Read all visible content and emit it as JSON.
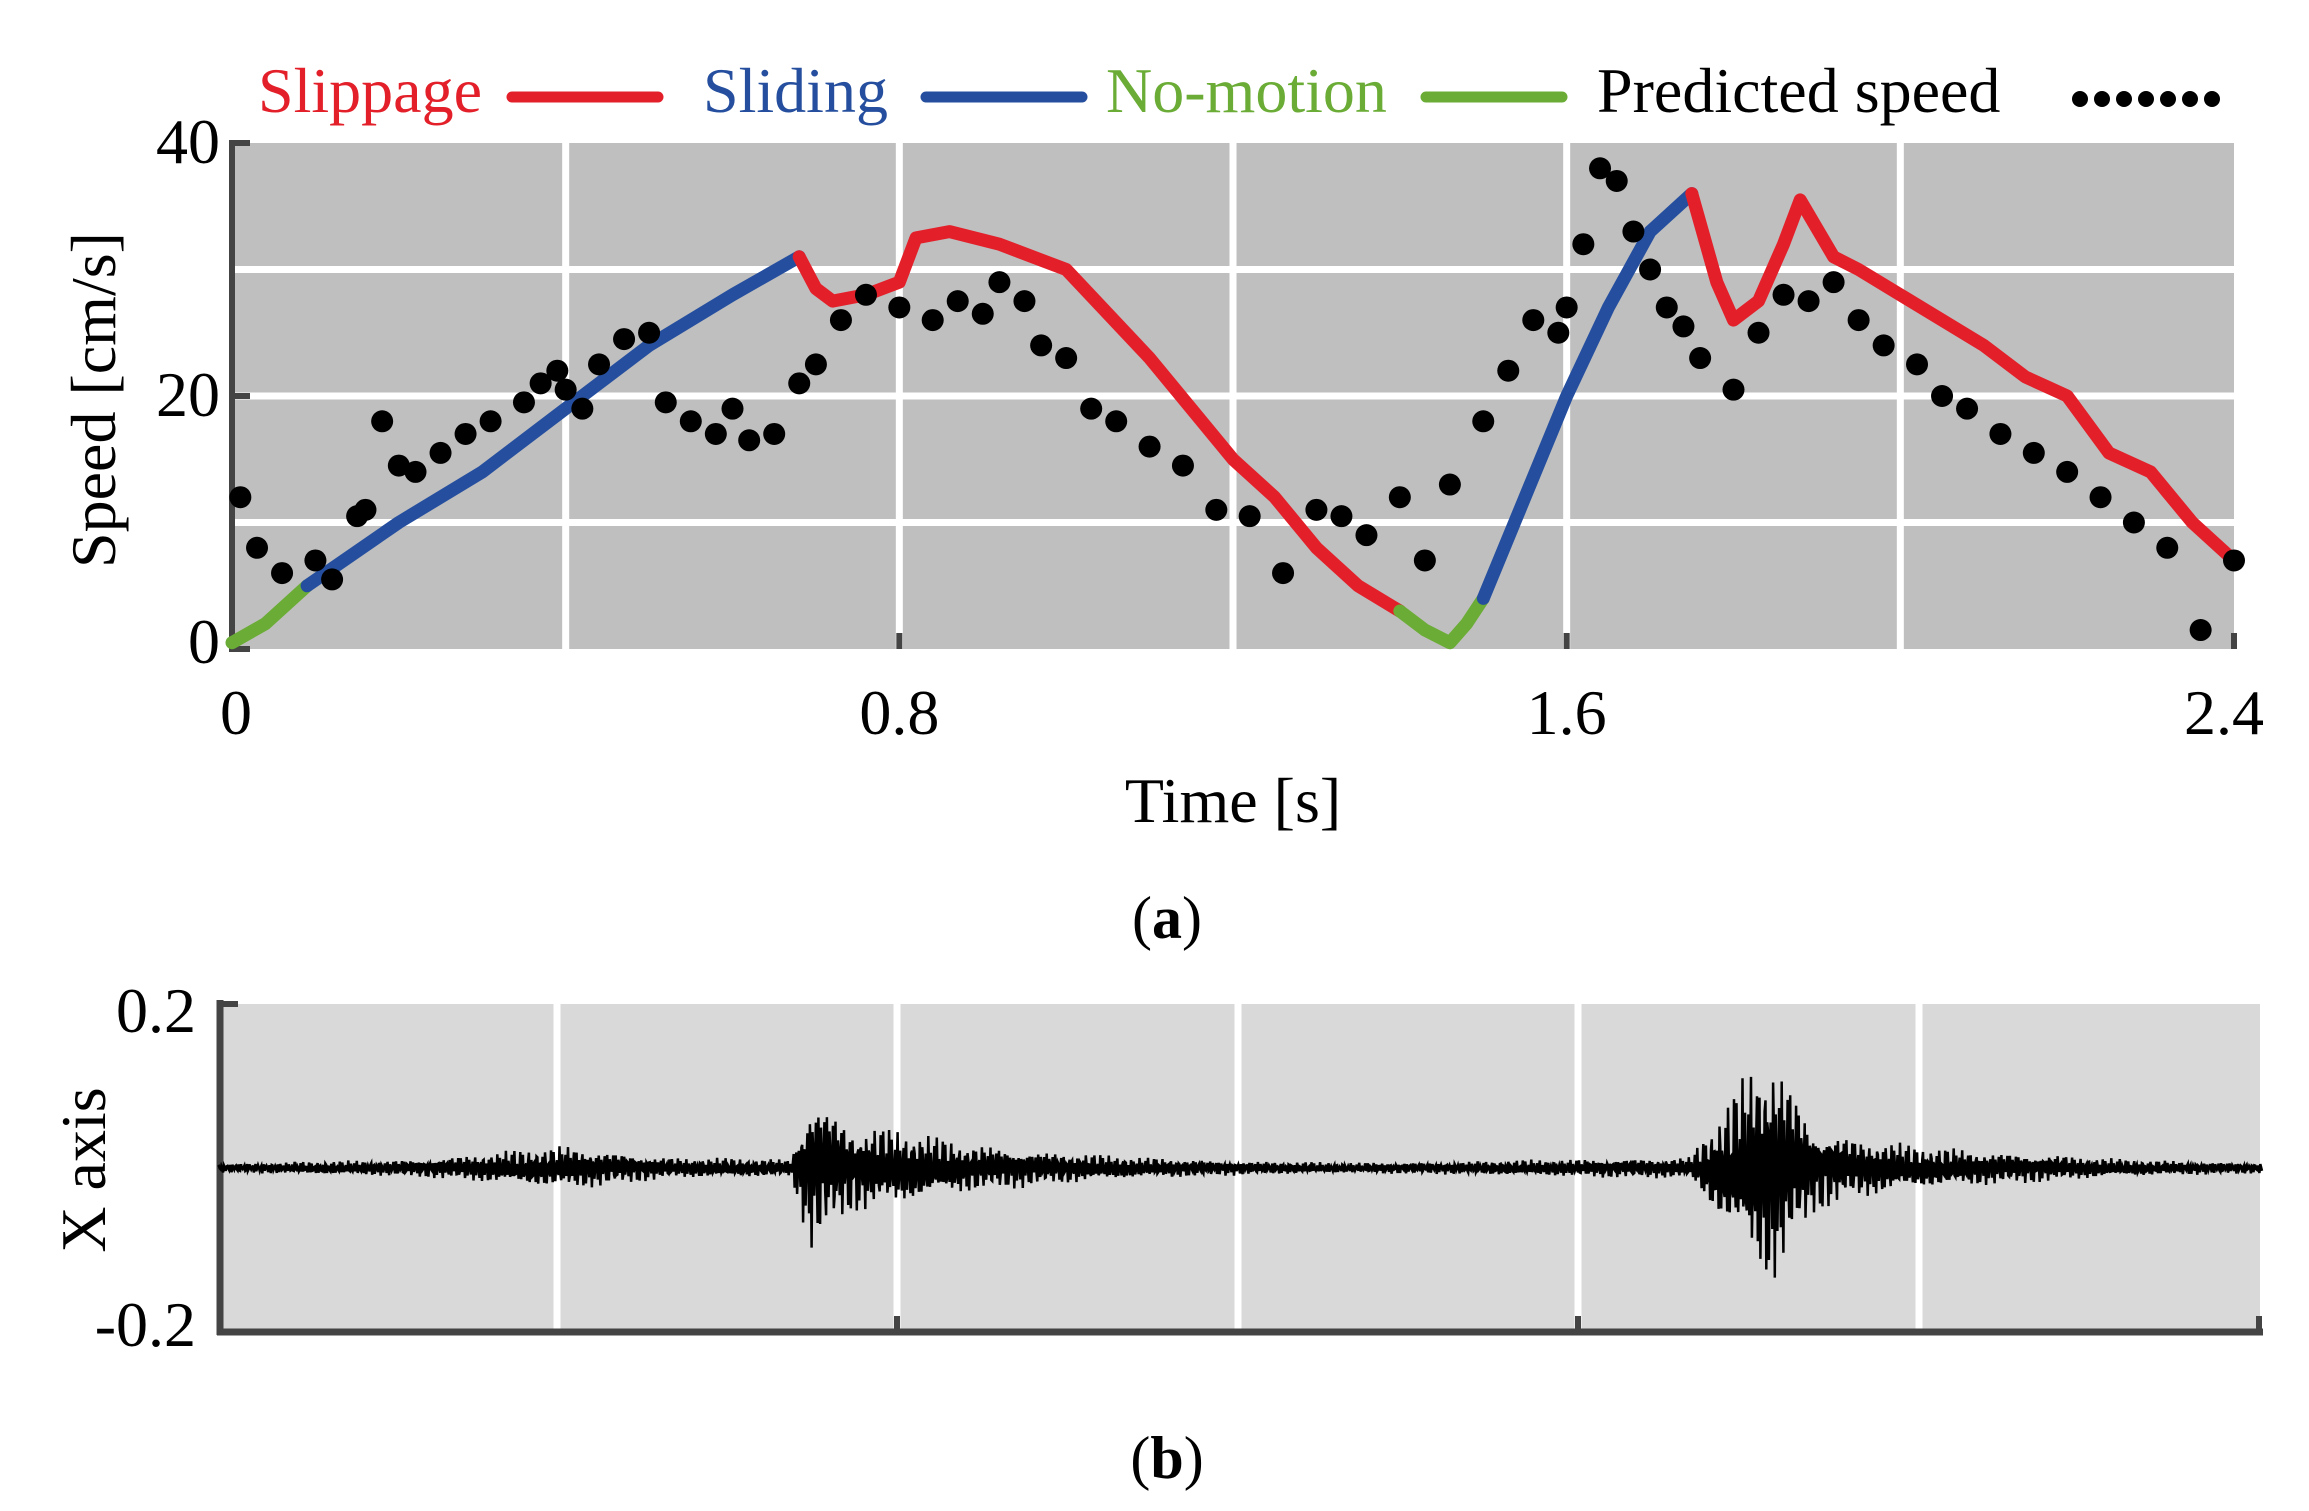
{
  "figure_a": {
    "caption_open": "(",
    "caption_letter": "a",
    "caption_close": ")"
  },
  "figure_b": {
    "caption_open": "(",
    "caption_letter": "b",
    "caption_close": ")"
  },
  "colors": {
    "slippage": "#e3202a",
    "sliding": "#254f9e",
    "no_motion": "#6aac35",
    "predicted": "#000000",
    "panel_a_bg": "#bfbfbf",
    "panel_b_bg": "#d9d9d9",
    "grid": "#ffffff",
    "axis": "#444444"
  },
  "chart_data": [
    {
      "type": "line",
      "title": "",
      "xlabel": "Time [s]",
      "ylabel": "Speed [cm/s]",
      "xlim": [
        0,
        2.4
      ],
      "ylim": [
        0,
        40
      ],
      "xticks": [
        0,
        0.8,
        1.6,
        2.4
      ],
      "xtick_labels": [
        "0",
        "0.8",
        "1.6",
        "2.4"
      ],
      "yticks": [
        0,
        20,
        40
      ],
      "ytick_labels": [
        "0",
        "20",
        "40"
      ],
      "grid": true,
      "legend": [
        {
          "label": "Slippage",
          "style": "line",
          "color_key": "slippage"
        },
        {
          "label": "Sliding",
          "style": "line",
          "color_key": "sliding"
        },
        {
          "label": "No-motion",
          "style": "line",
          "color_key": "no_motion"
        },
        {
          "label": "Predicted speed",
          "style": "dots",
          "color_key": "predicted"
        }
      ],
      "legend_position": "top",
      "series": [
        {
          "name": "No-motion",
          "color_key": "no_motion",
          "x": [
            0,
            0.04,
            0.09
          ],
          "y": [
            0.5,
            2,
            5
          ]
        },
        {
          "name": "Sliding",
          "color_key": "sliding",
          "x": [
            0.09,
            0.2,
            0.3,
            0.4,
            0.5,
            0.6,
            0.68
          ],
          "y": [
            5,
            10,
            14,
            19,
            24,
            28,
            31
          ]
        },
        {
          "name": "Slippage",
          "color_key": "slippage",
          "x": [
            0.68,
            0.7,
            0.72,
            0.76,
            0.8,
            0.82,
            0.86,
            0.92,
            1.0,
            1.1,
            1.2,
            1.25,
            1.3,
            1.35,
            1.4
          ],
          "y": [
            31,
            28.5,
            27.5,
            28,
            29,
            32.5,
            33,
            32,
            30,
            23,
            15,
            12,
            8,
            5,
            3
          ]
        },
        {
          "name": "No-motion",
          "color_key": "no_motion",
          "x": [
            1.4,
            1.43,
            1.46,
            1.48,
            1.5
          ],
          "y": [
            3,
            1.5,
            0.5,
            2,
            4
          ]
        },
        {
          "name": "Sliding",
          "color_key": "sliding",
          "x": [
            1.5,
            1.55,
            1.6,
            1.65,
            1.7,
            1.75
          ],
          "y": [
            4,
            12,
            20,
            27,
            33,
            36
          ]
        },
        {
          "name": "Slippage",
          "color_key": "slippage",
          "x": [
            1.75,
            1.78,
            1.8,
            1.83,
            1.86,
            1.88,
            1.92,
            1.95,
            2.0,
            2.05,
            2.1,
            2.15,
            2.2,
            2.25,
            2.3,
            2.35,
            2.4
          ],
          "y": [
            36,
            29,
            26,
            27.5,
            32,
            35.5,
            31,
            30,
            28,
            26,
            24,
            21.5,
            20,
            15.5,
            14,
            10,
            7
          ]
        },
        {
          "name": "Predicted speed",
          "style": "dots",
          "color_key": "predicted",
          "x": [
            0.01,
            0.03,
            0.06,
            0.1,
            0.12,
            0.15,
            0.16,
            0.18,
            0.2,
            0.22,
            0.25,
            0.28,
            0.31,
            0.35,
            0.37,
            0.39,
            0.4,
            0.42,
            0.44,
            0.47,
            0.5,
            0.52,
            0.55,
            0.58,
            0.6,
            0.62,
            0.65,
            0.68,
            0.7,
            0.73,
            0.76,
            0.8,
            0.84,
            0.87,
            0.9,
            0.92,
            0.95,
            0.97,
            1.0,
            1.03,
            1.06,
            1.1,
            1.14,
            1.18,
            1.22,
            1.26,
            1.3,
            1.33,
            1.36,
            1.4,
            1.43,
            1.46,
            1.5,
            1.53,
            1.56,
            1.59,
            1.6,
            1.62,
            1.64,
            1.66,
            1.68,
            1.7,
            1.72,
            1.74,
            1.76,
            1.8,
            1.83,
            1.86,
            1.89,
            1.92,
            1.95,
            1.98,
            2.02,
            2.05,
            2.08,
            2.12,
            2.16,
            2.2,
            2.24,
            2.28,
            2.32,
            2.36,
            2.4
          ],
          "y": [
            12,
            8,
            6,
            7,
            5.5,
            10.5,
            11,
            18,
            14.5,
            14,
            15.5,
            17,
            18,
            19.5,
            21,
            22,
            20.5,
            19,
            22.5,
            24.5,
            25,
            19.5,
            18,
            17,
            19,
            16.5,
            17,
            21,
            22.5,
            26,
            28,
            27,
            26,
            27.5,
            26.5,
            29,
            27.5,
            24,
            23,
            19,
            18,
            16,
            14.5,
            11,
            10.5,
            6,
            11,
            10.5,
            9,
            12,
            7,
            13,
            18,
            22,
            26,
            25,
            27,
            32,
            38,
            37,
            33,
            30,
            27,
            25.5,
            23,
            20.5,
            25,
            28,
            27.5,
            29,
            26,
            24,
            22.5,
            20,
            19,
            17,
            15.5,
            14,
            12,
            10,
            8,
            1.5,
            7
          ]
        }
      ]
    },
    {
      "type": "line",
      "title": "",
      "xlabel": "",
      "ylabel": "X axis",
      "ylim": [
        -0.2,
        0.2
      ],
      "yticks": [
        -0.2,
        0.2
      ],
      "ytick_labels": [
        "-0.2",
        "0.2"
      ],
      "grid": true,
      "series": [
        {
          "name": "X axis vibration",
          "color_key": "predicted",
          "envelope_x": [
            0,
            0.1,
            0.17,
            0.22,
            0.28,
            0.29,
            0.31,
            0.33,
            0.36,
            0.4,
            0.45,
            0.5,
            0.55,
            0.6,
            0.66,
            0.72,
            0.74,
            0.76,
            0.78,
            0.8,
            0.83,
            0.86,
            0.9,
            0.93,
            0.96,
            1.0
          ],
          "envelope_y": [
            0.005,
            0.01,
            0.025,
            0.012,
            0.01,
            0.09,
            0.05,
            0.045,
            0.03,
            0.02,
            0.012,
            0.008,
            0.006,
            0.007,
            0.01,
            0.012,
            0.08,
            0.14,
            0.05,
            0.035,
            0.025,
            0.02,
            0.015,
            0.01,
            0.008,
            0.006
          ]
        }
      ]
    }
  ]
}
